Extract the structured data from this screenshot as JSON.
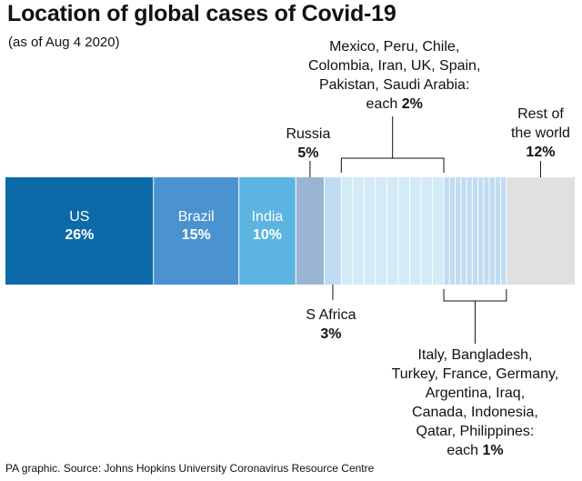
{
  "title": "Location of global cases of Covid-19",
  "subtitle": "(as of Aug 4 2020)",
  "source": "PA graphic. Source: Johns Hopkins University Coronavirus Resource Centre",
  "chart_data": {
    "type": "bar",
    "orientation": "horizontal-stacked-100",
    "unit": "%",
    "colors": {
      "dark_blue": "#0c6aa8",
      "mid_blue": "#4a93d0",
      "light_blue": "#5bb5e0",
      "steel": "#9cb4d4",
      "pale": "#bfdcf2",
      "paler": "#d3eaf7",
      "grey": "#e0e0e0",
      "divider": "#ffffff",
      "bracket": "#111111"
    },
    "segments": [
      {
        "name": "US",
        "value": 26,
        "color": "#0c6aa8",
        "label": [
          "US",
          "26%"
        ],
        "label_color": "#ffffff"
      },
      {
        "name": "Brazil",
        "value": 15,
        "color": "#4a93d0",
        "label": [
          "Brazil",
          "15%"
        ],
        "label_color": "#ffffff"
      },
      {
        "name": "India",
        "value": 10,
        "color": "#5bb5e0",
        "label": [
          "India",
          "10%"
        ],
        "label_color": "#ffffff"
      },
      {
        "name": "Russia",
        "value": 5,
        "color": "#9cb4d4"
      },
      {
        "name": "S Africa",
        "value": 3,
        "color": "#bfdcf2"
      },
      {
        "name": "Mexico",
        "value": 2,
        "color": "#d3eaf7"
      },
      {
        "name": "Peru",
        "value": 2,
        "color": "#d3eaf7"
      },
      {
        "name": "Chile",
        "value": 2,
        "color": "#d3eaf7"
      },
      {
        "name": "Colombia",
        "value": 2,
        "color": "#d3eaf7"
      },
      {
        "name": "Iran",
        "value": 2,
        "color": "#d3eaf7"
      },
      {
        "name": "UK",
        "value": 2,
        "color": "#d3eaf7"
      },
      {
        "name": "Spain",
        "value": 2,
        "color": "#d3eaf7"
      },
      {
        "name": "Pakistan",
        "value": 2,
        "color": "#d3eaf7"
      },
      {
        "name": "Saudi Arabia",
        "value": 2,
        "color": "#d3eaf7"
      },
      {
        "name": "Italy",
        "value": 1,
        "color": "#bfdcf2"
      },
      {
        "name": "Bangladesh",
        "value": 1,
        "color": "#bfdcf2"
      },
      {
        "name": "Turkey",
        "value": 1,
        "color": "#bfdcf2"
      },
      {
        "name": "France",
        "value": 1,
        "color": "#bfdcf2"
      },
      {
        "name": "Germany",
        "value": 1,
        "color": "#bfdcf2"
      },
      {
        "name": "Argentina",
        "value": 1,
        "color": "#bfdcf2"
      },
      {
        "name": "Iraq",
        "value": 1,
        "color": "#bfdcf2"
      },
      {
        "name": "Canada",
        "value": 1,
        "color": "#bfdcf2"
      },
      {
        "name": "Indonesia",
        "value": 1,
        "color": "#bfdcf2"
      },
      {
        "name": "Qatar",
        "value": 1,
        "color": "#bfdcf2"
      },
      {
        "name": "Philippines",
        "value": 1,
        "color": "#bfdcf2"
      },
      {
        "name": "Rest of the world",
        "value": 12,
        "color": "#e0e0e0"
      }
    ],
    "annotations": [
      {
        "id": "russia",
        "position": "above",
        "lines": [
          {
            "text": "Russia",
            "bold": false
          },
          {
            "text": "5%",
            "bold": true
          }
        ]
      },
      {
        "id": "rest",
        "position": "above",
        "lines": [
          {
            "text": "Rest of",
            "bold": false
          },
          {
            "text": "the world",
            "bold": false
          },
          {
            "text": "12%",
            "bold": true
          }
        ]
      },
      {
        "id": "group2",
        "position": "above",
        "lines": [
          {
            "text": "Mexico, Peru, Chile,",
            "bold": false
          },
          {
            "text": "Colombia, Iran, UK, Spain,",
            "bold": false
          },
          {
            "text": "Pakistan, Saudi Arabia:",
            "bold": false
          },
          {
            "text": "each ",
            "bold": false,
            "suffix": "2%"
          }
        ]
      },
      {
        "id": "safrica",
        "position": "below",
        "lines": [
          {
            "text": "S Africa",
            "bold": false
          },
          {
            "text": "3%",
            "bold": true
          }
        ]
      },
      {
        "id": "group1",
        "position": "below",
        "lines": [
          {
            "text": "Italy, Bangladesh,",
            "bold": false
          },
          {
            "text": "Turkey, France, Germany,",
            "bold": false
          },
          {
            "text": "Argentina, Iraq,",
            "bold": false
          },
          {
            "text": "Canada, Indonesia,",
            "bold": false
          },
          {
            "text": "Qatar, Philippines:",
            "bold": false
          },
          {
            "text": "each ",
            "bold": false,
            "suffix": "1%"
          }
        ]
      }
    ]
  }
}
